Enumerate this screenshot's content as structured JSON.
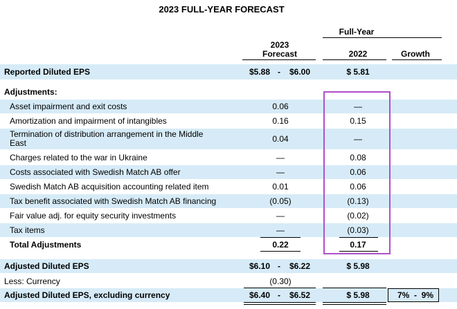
{
  "title": "2023 FULL-YEAR FORECAST",
  "header": {
    "group": "Full-Year",
    "col_2023_line1": "2023",
    "col_2023_line2": "Forecast",
    "col_2022": "2022",
    "col_growth": "Growth"
  },
  "reported": {
    "label": "Reported Diluted EPS",
    "low": "$5.88",
    "dash": "-",
    "high": "$6.00",
    "prior": "$ 5.81"
  },
  "adjustments_label": "Adjustments:",
  "items": [
    {
      "label": "Asset impairment and exit costs",
      "v2023": "0.06",
      "v2022": "—"
    },
    {
      "label": "Amortization and impairment of intangibles",
      "v2023": "0.16",
      "v2022": "0.15"
    },
    {
      "label": "Termination of distribution arrangement in the Middle East",
      "label_l1": "Termination of distribution arrangement in the Middle",
      "label_l2": "East",
      "v2023": "0.04",
      "v2022": "—"
    },
    {
      "label": "Charges related to the war in Ukraine",
      "v2023": "—",
      "v2022": "0.08"
    },
    {
      "label": "Costs associated with Swedish Match AB offer",
      "v2023": "—",
      "v2022": "0.06"
    },
    {
      "label": "Swedish Match AB acquisition accounting related item",
      "v2023": "0.01",
      "v2022": "0.06"
    },
    {
      "label": "Tax benefit associated with Swedish Match AB financing",
      "v2023": "(0.05)",
      "v2022": "(0.13)"
    },
    {
      "label": "Fair value adj. for equity security investments",
      "v2023": "—",
      "v2022": "(0.02)"
    },
    {
      "label": "Tax items",
      "v2023": "—",
      "v2022": "(0.03)"
    }
  ],
  "total": {
    "label": "Total Adjustments",
    "v2023": "0.22",
    "v2022": "0.17"
  },
  "adjusted": {
    "label": "Adjusted Diluted EPS",
    "low": "$6.10",
    "dash": "-",
    "high": "$6.22",
    "prior": "$ 5.98"
  },
  "currency": {
    "label": "Less: Currency",
    "v2023": "(0.30)"
  },
  "adjusted_ex": {
    "label": "Adjusted Diluted EPS, excluding currency",
    "low": "$6.40",
    "dash": "-",
    "high": "$6.52",
    "prior": "$ 5.98",
    "growth": "7%  -  9%"
  },
  "colors": {
    "row_shade": "#d6ebf7",
    "highlight_box": "#b04fc8"
  }
}
